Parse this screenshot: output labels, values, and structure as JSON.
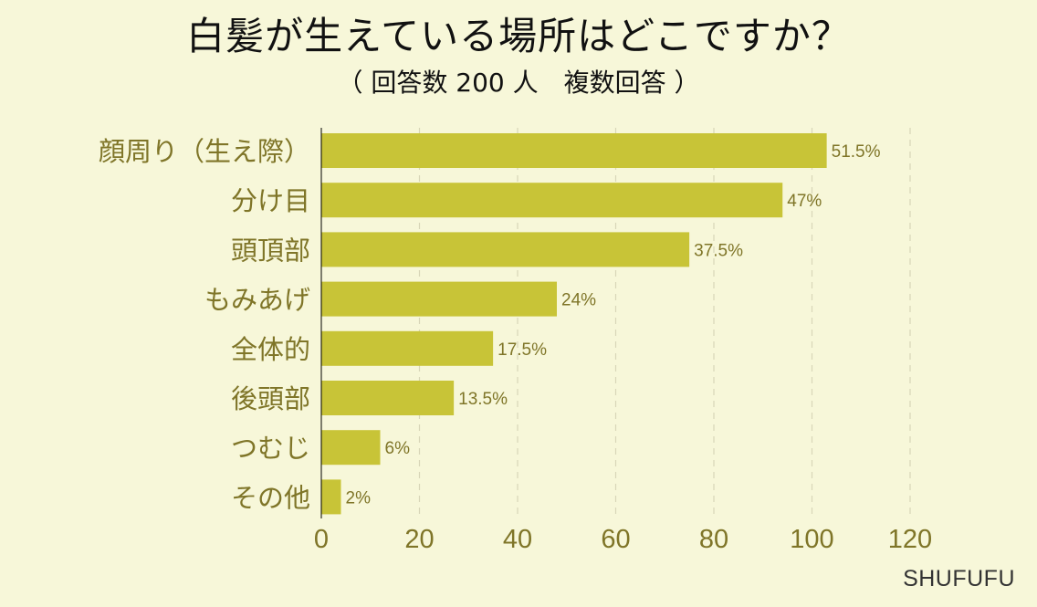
{
  "title": "白髪が生えている場所はどこですか？",
  "subtitle": "（ 回答数 200 人　複数回答 ）",
  "credit": "SHUFUFU",
  "colors": {
    "background": "#F7F7D9",
    "bar": "#C8C437",
    "label": "#7F7528",
    "grid": "#D8D6B8"
  },
  "chart_data": {
    "type": "bar",
    "orientation": "horizontal",
    "title": "白髪が生えている場所はどこですか？",
    "subtitle": "（ 回答数 200 人　複数回答 ）",
    "categories": [
      "顔周り（生え際）",
      "分け目",
      "頭頂部",
      "もみあげ",
      "全体的",
      "後頭部",
      "つむじ",
      "その他"
    ],
    "values": [
      103,
      94,
      75,
      48,
      35,
      27,
      12,
      4
    ],
    "value_labels": [
      "51.5%",
      "47%",
      "37.5%",
      "24%",
      "17.5%",
      "13.5%",
      "6%",
      "2%"
    ],
    "xlim": [
      0,
      120
    ],
    "xticks": [
      "0",
      "20",
      "40",
      "60",
      "80",
      "100",
      "120"
    ],
    "grid": true
  }
}
